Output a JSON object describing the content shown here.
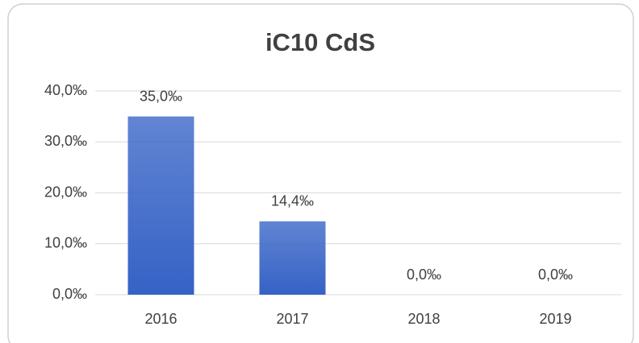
{
  "chart_data": {
    "type": "bar",
    "title": "iC10 CdS",
    "categories": [
      "2016",
      "2017",
      "2018",
      "2019"
    ],
    "values": [
      35.0,
      14.4,
      0.0,
      0.0
    ],
    "value_labels": [
      "35,0‰",
      "14,4‰",
      "0,0‰",
      "0,0‰"
    ],
    "color": "#3562c6",
    "ylim": [
      0,
      40
    ],
    "yticks": [
      {
        "value": 0,
        "label": "0,0‰"
      },
      {
        "value": 10,
        "label": "10,0‰"
      },
      {
        "value": 20,
        "label": "20,0‰"
      },
      {
        "value": 30,
        "label": "30,0‰"
      },
      {
        "value": 40,
        "label": "40,0‰"
      }
    ],
    "grid": true
  }
}
